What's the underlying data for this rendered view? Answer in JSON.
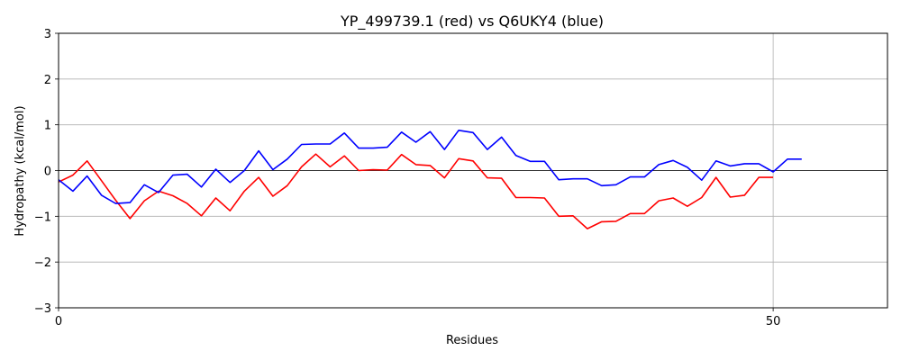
{
  "chart_data": {
    "type": "line",
    "title": "YP_499739.1 (red) vs Q6UKY4 (blue)",
    "xlabel": "Residues",
    "ylabel": "Hydropathy (kcal/mol)",
    "xlim": [
      0,
      58
    ],
    "ylim": [
      -3,
      3
    ],
    "xticks": [
      0,
      50
    ],
    "yticks": [
      -3,
      -2,
      -1,
      0,
      1,
      2,
      3
    ],
    "grid": true,
    "series": [
      {
        "name": "YP_499739.1",
        "color": "#ff0000",
        "x": [
          0,
          1,
          2,
          3,
          4,
          5,
          6,
          7,
          8,
          9,
          10,
          11,
          12,
          13,
          14,
          15,
          16,
          17,
          18,
          19,
          20,
          21,
          22,
          23,
          24,
          25,
          26,
          27,
          28,
          29,
          30,
          31,
          32,
          33,
          34,
          35,
          36,
          37,
          38,
          39,
          40,
          41,
          42,
          43,
          44,
          45,
          46,
          47,
          48,
          49,
          50
        ],
        "y": [
          -0.25,
          -0.1,
          0.21,
          -0.22,
          -0.65,
          -1.05,
          -0.66,
          -0.45,
          -0.55,
          -0.72,
          -0.99,
          -0.6,
          -0.88,
          -0.45,
          -0.15,
          -0.56,
          -0.33,
          0.08,
          0.36,
          0.08,
          0.32,
          0.0,
          0.02,
          0.01,
          0.35,
          0.13,
          0.11,
          -0.16,
          0.26,
          0.21,
          -0.16,
          -0.17,
          -0.59,
          -0.59,
          -0.6,
          -1.0,
          -0.99,
          -1.27,
          -1.12,
          -1.11,
          -0.94,
          -0.94,
          -0.66,
          -0.6,
          -0.78,
          -0.59,
          -0.15,
          -0.58,
          -0.54,
          -0.15,
          -0.15
        ]
      },
      {
        "name": "Q6UKY4",
        "color": "#0000ff",
        "x": [
          0,
          1,
          2,
          3,
          4,
          5,
          6,
          7,
          8,
          9,
          10,
          11,
          12,
          13,
          14,
          15,
          16,
          17,
          18,
          19,
          20,
          21,
          22,
          23,
          24,
          25,
          26,
          27,
          28,
          29,
          30,
          31,
          32,
          33,
          34,
          35,
          36,
          37,
          38,
          39,
          40,
          41,
          42,
          43,
          44,
          45,
          46,
          47,
          48,
          49,
          50,
          51,
          52
        ],
        "y": [
          -0.2,
          -0.45,
          -0.12,
          -0.54,
          -0.72,
          -0.7,
          -0.31,
          -0.48,
          -0.1,
          -0.08,
          -0.36,
          0.03,
          -0.26,
          0.0,
          0.43,
          0.02,
          0.25,
          0.57,
          0.58,
          0.58,
          0.82,
          0.49,
          0.49,
          0.51,
          0.84,
          0.62,
          0.85,
          0.46,
          0.88,
          0.83,
          0.46,
          0.73,
          0.33,
          0.2,
          0.2,
          -0.2,
          -0.18,
          -0.18,
          -0.33,
          -0.31,
          -0.14,
          -0.14,
          0.13,
          0.22,
          0.07,
          -0.21,
          0.21,
          0.1,
          0.15,
          0.15,
          -0.03,
          0.25,
          0.25
        ]
      }
    ]
  }
}
